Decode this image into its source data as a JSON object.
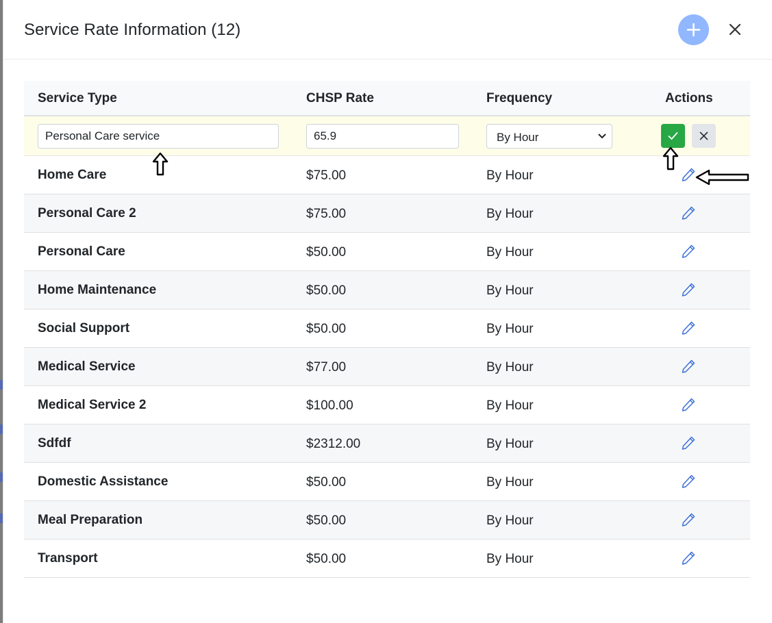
{
  "modal": {
    "title": "Service Rate Information (12)",
    "add_icon": "plus-icon",
    "close_icon": "close-icon"
  },
  "table": {
    "headers": {
      "service_type": "Service Type",
      "chsp_rate": "CHSP Rate",
      "frequency": "Frequency",
      "actions": "Actions"
    },
    "edit_row": {
      "service_type_value": "Personal Care service",
      "chsp_rate_value": "65.9",
      "frequency_selected": "By Hour",
      "save_icon": "check-icon",
      "cancel_icon": "close-icon"
    },
    "rows": [
      {
        "service_type": "Home Care",
        "rate": "$75.00",
        "frequency": "By Hour"
      },
      {
        "service_type": "Personal Care 2",
        "rate": "$75.00",
        "frequency": "By Hour"
      },
      {
        "service_type": "Personal Care",
        "rate": "$50.00",
        "frequency": "By Hour"
      },
      {
        "service_type": "Home Maintenance",
        "rate": "$50.00",
        "frequency": "By Hour"
      },
      {
        "service_type": "Social Support",
        "rate": "$50.00",
        "frequency": "By Hour"
      },
      {
        "service_type": "Medical Service",
        "rate": "$77.00",
        "frequency": "By Hour"
      },
      {
        "service_type": "Medical Service 2",
        "rate": "$100.00",
        "frequency": "By Hour"
      },
      {
        "service_type": "Sdfdf",
        "rate": "$2312.00",
        "frequency": "By Hour"
      },
      {
        "service_type": "Domestic Assistance",
        "rate": "$50.00",
        "frequency": "By Hour"
      },
      {
        "service_type": "Meal Preparation",
        "rate": "$50.00",
        "frequency": "By Hour"
      },
      {
        "service_type": "Transport",
        "rate": "$50.00",
        "frequency": "By Hour"
      }
    ],
    "row_edit_icon": "pencil-icon"
  },
  "colors": {
    "accent_add": "#91b7ff",
    "save_green": "#28a745",
    "edit_row_bg": "#fefde8",
    "pencil_blue": "#3b6fd8"
  }
}
